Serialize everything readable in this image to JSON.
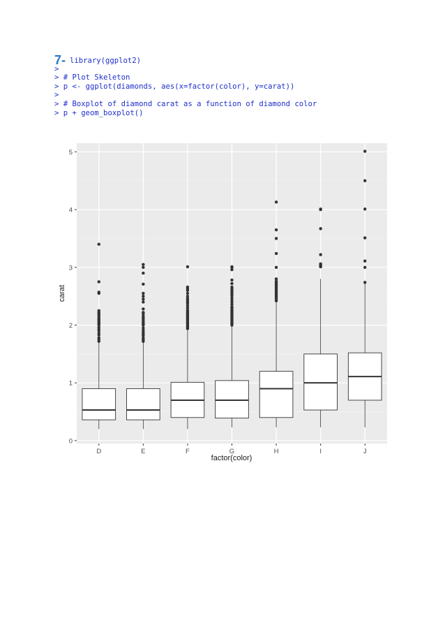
{
  "code": {
    "step_number": "7-",
    "lines": [
      "library(ggplot2)",
      ">",
      "> # Plot Skeleton",
      "> p <- ggplot(diamonds, aes(x=factor(color), y=carat))",
      ">",
      "> # Boxplot of diamond carat as a function of diamond color",
      "> p + geom_boxplot()"
    ]
  },
  "chart_data": {
    "type": "boxplot",
    "title": "",
    "xlabel": "factor(color)",
    "ylabel": "carat",
    "ylim": [
      -0.05,
      5.15
    ],
    "yticks": [
      0,
      1,
      2,
      3,
      4,
      5
    ],
    "categories": [
      "D",
      "E",
      "F",
      "G",
      "H",
      "I",
      "J"
    ],
    "boxes": [
      {
        "category": "D",
        "min": 0.2,
        "q1": 0.36,
        "median": 0.53,
        "q3": 0.9,
        "max": 1.7,
        "outliers": [
          1.72,
          1.75,
          1.78,
          1.83,
          1.86,
          1.9,
          1.93,
          1.96,
          2.0,
          2.02,
          2.04,
          2.06,
          2.08,
          2.1,
          2.12,
          2.15,
          2.18,
          2.2,
          2.22,
          2.25,
          2.55,
          2.57,
          2.75,
          3.4
        ]
      },
      {
        "category": "E",
        "min": 0.2,
        "q1": 0.36,
        "median": 0.53,
        "q3": 0.9,
        "max": 1.7,
        "outliers": [
          1.72,
          1.75,
          1.78,
          1.82,
          1.85,
          1.88,
          1.91,
          1.95,
          2.0,
          2.02,
          2.04,
          2.07,
          2.1,
          2.13,
          2.16,
          2.2,
          2.22,
          2.28,
          2.4,
          2.45,
          2.5,
          2.55,
          2.71,
          2.9,
          3.0,
          3.05
        ]
      },
      {
        "category": "F",
        "min": 0.2,
        "q1": 0.4,
        "median": 0.7,
        "q3": 1.01,
        "max": 1.92,
        "outliers": [
          1.94,
          1.96,
          1.98,
          2.0,
          2.02,
          2.04,
          2.06,
          2.08,
          2.1,
          2.12,
          2.14,
          2.16,
          2.18,
          2.2,
          2.22,
          2.24,
          2.26,
          2.3,
          2.34,
          2.38,
          2.4,
          2.43,
          2.46,
          2.5,
          2.55,
          2.6,
          2.63,
          2.66,
          3.01
        ]
      },
      {
        "category": "G",
        "min": 0.23,
        "q1": 0.39,
        "median": 0.7,
        "q3": 1.04,
        "max": 1.99,
        "outliers": [
          2.0,
          2.02,
          2.04,
          2.06,
          2.08,
          2.1,
          2.12,
          2.14,
          2.16,
          2.18,
          2.2,
          2.22,
          2.24,
          2.26,
          2.28,
          2.3,
          2.32,
          2.36,
          2.4,
          2.44,
          2.48,
          2.52,
          2.55,
          2.58,
          2.6,
          2.63,
          2.66,
          2.72,
          2.78,
          2.96,
          3.0,
          3.01
        ]
      },
      {
        "category": "H",
        "min": 0.23,
        "q1": 0.4,
        "median": 0.9,
        "q3": 1.2,
        "max": 2.4,
        "outliers": [
          2.42,
          2.45,
          2.48,
          2.5,
          2.52,
          2.54,
          2.56,
          2.58,
          2.6,
          2.62,
          2.64,
          2.66,
          2.68,
          2.7,
          2.72,
          2.74,
          2.76,
          2.8,
          3.0,
          3.24,
          3.5,
          3.65,
          4.13
        ]
      },
      {
        "category": "I",
        "min": 0.23,
        "q1": 0.53,
        "median": 1.0,
        "q3": 1.5,
        "max": 2.8,
        "outliers": [
          3.01,
          3.02,
          3.04,
          3.06,
          3.22,
          3.67,
          4.0,
          4.01
        ]
      },
      {
        "category": "J",
        "min": 0.23,
        "q1": 0.7,
        "median": 1.11,
        "q3": 1.52,
        "max": 2.72,
        "outliers": [
          2.74,
          3.0,
          3.11,
          3.51,
          4.01,
          4.5,
          5.01
        ]
      }
    ],
    "grid": true,
    "legend": "none",
    "panel_color": "#ebebeb"
  }
}
